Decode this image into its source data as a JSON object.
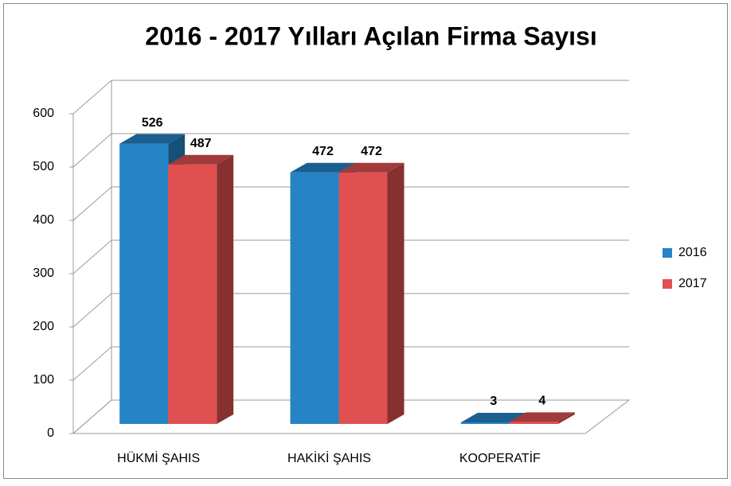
{
  "chart_data": {
    "type": "bar3d",
    "title": "2016 - 2017 Yılları Açılan Firma Sayısı",
    "categories": [
      "HÜKMİ ŞAHIS",
      "HAKİKİ ŞAHIS",
      "KOOPERATİF"
    ],
    "series": [
      {
        "name": "2016",
        "color": "#2484c6",
        "values": [
          526,
          472,
          3
        ]
      },
      {
        "name": "2017",
        "color": "#e05050",
        "values": [
          487,
          472,
          4
        ]
      }
    ],
    "ylim": [
      0,
      600
    ],
    "yticks": [
      0,
      100,
      200,
      300,
      400,
      500,
      600
    ],
    "grid": true,
    "legend": "right"
  }
}
